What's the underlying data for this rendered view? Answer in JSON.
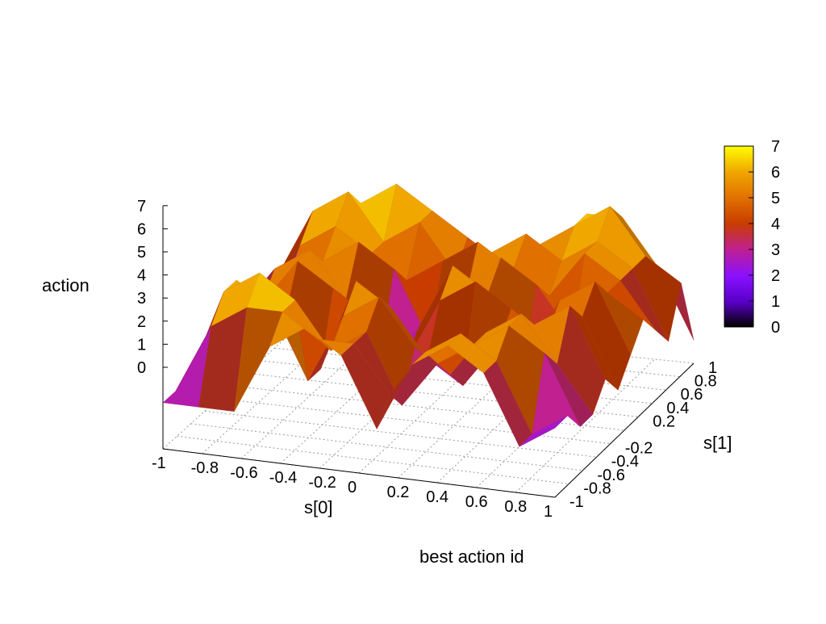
{
  "chart_data": {
    "type": "surface",
    "title": "",
    "xlabel": "s[0]",
    "ylabel": "s[1]",
    "zlabel": "action",
    "footer_label": "best action id",
    "x_ticks": [
      "-1",
      "-0.8",
      "-0.6",
      "-0.4",
      "-0.2",
      "0",
      "0.2",
      "0.4",
      "0.6",
      "0.8",
      "1"
    ],
    "y_ticks": [
      "-1",
      "-0.8",
      "-0.6",
      "-0.4",
      "-0.2",
      "0.2",
      "0.4",
      "0.6",
      "0.8",
      "1"
    ],
    "y_tick_values": [
      -1,
      -0.8,
      -0.6,
      -0.4,
      -0.2,
      0.2,
      0.4,
      0.6,
      0.8,
      1
    ],
    "z_ticks": [
      "0",
      "1",
      "2",
      "3",
      "4",
      "5",
      "6",
      "7"
    ],
    "xlim": [
      -1,
      1
    ],
    "ylim": [
      -1,
      1
    ],
    "zlim": [
      0,
      7
    ],
    "grid": true,
    "colorbar": {
      "min": 0,
      "max": 7,
      "ticks": [
        "0",
        "1",
        "2",
        "3",
        "4",
        "5",
        "6",
        "7"
      ],
      "palette": [
        "#000000",
        "#5a00c8",
        "#8a10ff",
        "#c02090",
        "#c83c00",
        "#e07000",
        "#f0a800",
        "#ffff00"
      ]
    },
    "grid_size": [
      12,
      12
    ],
    "z_values": [
      [
        2,
        2,
        2,
        5,
        6,
        5,
        2,
        5,
        6,
        5,
        2,
        3
      ],
      [
        2,
        5,
        6,
        6,
        5,
        5,
        3,
        5,
        6,
        5,
        2,
        3
      ],
      [
        2,
        6,
        7,
        6,
        4,
        5,
        2,
        4,
        5,
        6,
        5,
        2
      ],
      [
        3,
        6,
        5,
        2,
        5,
        6,
        4,
        3,
        5,
        6,
        4,
        2
      ],
      [
        2,
        5,
        4,
        2,
        6,
        5,
        3,
        2,
        4,
        5,
        6,
        3
      ],
      [
        2,
        4,
        6,
        5,
        4,
        2,
        5,
        6,
        5,
        4,
        5,
        2
      ],
      [
        3,
        5,
        6,
        4,
        2,
        3,
        6,
        5,
        2,
        5,
        6,
        3
      ],
      [
        2,
        4,
        5,
        6,
        5,
        2,
        4,
        6,
        5,
        3,
        5,
        4
      ],
      [
        2,
        5,
        6,
        5,
        4,
        5,
        6,
        5,
        4,
        6,
        5,
        3
      ],
      [
        3,
        6,
        7,
        5,
        6,
        4,
        5,
        6,
        5,
        6,
        5,
        2
      ],
      [
        2,
        5,
        6,
        7,
        6,
        5,
        4,
        5,
        6,
        7,
        5,
        4
      ],
      [
        2,
        3,
        5,
        6,
        5,
        4,
        3,
        4,
        6,
        6,
        4,
        1
      ]
    ]
  }
}
